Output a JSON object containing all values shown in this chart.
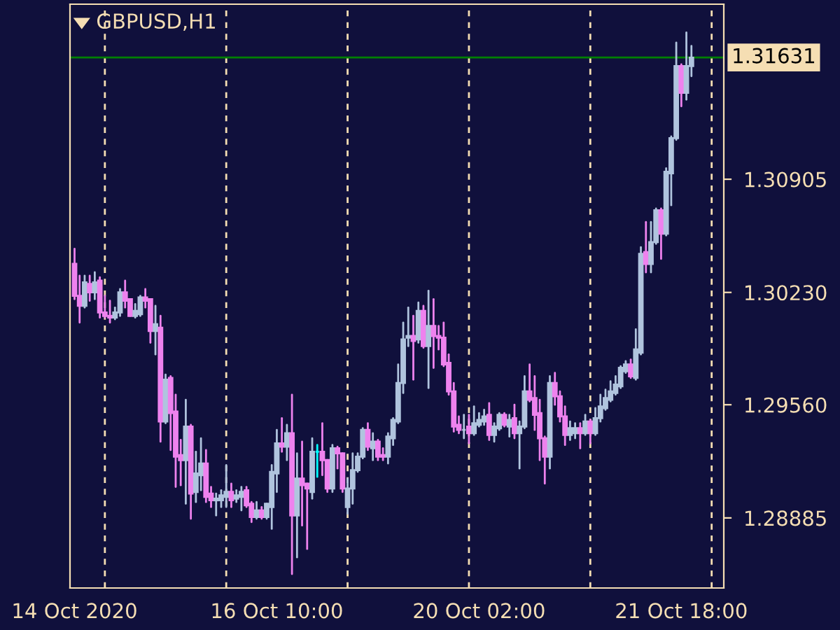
{
  "chart_data": {
    "type": "candlestick",
    "title": "GBPUSD,H1",
    "categories": [
      "14 Oct 2020",
      null,
      null,
      null,
      null,
      null,
      null,
      null,
      null,
      null,
      null,
      null,
      null,
      null,
      null,
      null,
      null,
      null,
      null,
      null,
      null,
      null,
      null,
      null,
      null,
      null,
      null,
      null,
      null,
      null,
      null,
      null,
      null,
      null,
      null,
      null,
      null,
      null,
      null,
      null,
      "16 Oct 10:00",
      null,
      null,
      null,
      null,
      null,
      null,
      null,
      null,
      null,
      null,
      null,
      null,
      null,
      null,
      null,
      null,
      null,
      null,
      null,
      null,
      null,
      null,
      null,
      null,
      null,
      null,
      null,
      null,
      null,
      null,
      null,
      null,
      null,
      null,
      null,
      null,
      null,
      null,
      null,
      "20 Oct 02:00",
      null,
      null,
      null,
      null,
      null,
      null,
      null,
      null,
      null,
      null,
      null,
      null,
      null,
      null,
      null,
      null,
      null,
      null,
      null,
      null,
      null,
      null,
      null,
      null,
      null,
      null,
      null,
      null,
      null,
      null,
      null,
      null,
      null,
      null,
      null,
      null,
      null,
      null,
      null,
      "21 Oct 18:00",
      null,
      null
    ],
    "ohlc": [
      [
        1.304,
        1.3049,
        1.3019,
        1.3021
      ],
      [
        1.3021,
        1.3033,
        1.3005,
        1.3015
      ],
      [
        1.3015,
        1.3033,
        1.3014,
        1.3029
      ],
      [
        1.3028,
        1.3033,
        1.3018,
        1.3023
      ],
      [
        1.3023,
        1.3035,
        1.3019,
        1.3029
      ],
      [
        1.303,
        1.3032,
        1.3008,
        1.3011
      ],
      [
        1.3011,
        1.3021,
        1.3008,
        1.3009
      ],
      [
        1.3009,
        1.3018,
        1.3005,
        1.3008
      ],
      [
        1.3008,
        1.3014,
        1.3007,
        1.3011
      ],
      [
        1.3011,
        1.3025,
        1.3009,
        1.3023
      ],
      [
        1.3023,
        1.303,
        1.3014,
        1.3018
      ],
      [
        1.3019,
        1.3019,
        1.3009,
        1.3009
      ],
      [
        1.3009,
        1.3016,
        1.3008,
        1.3012
      ],
      [
        1.301,
        1.3021,
        1.3009,
        1.302
      ],
      [
        1.302,
        1.3025,
        1.3014,
        1.3018
      ],
      [
        1.3019,
        1.3019,
        1.2993,
        1.3
      ],
      [
        1.3,
        1.3015,
        1.2986,
        1.3004
      ],
      [
        1.3002,
        1.3009,
        1.2934,
        1.2946
      ],
      [
        1.2946,
        1.2974,
        1.2945,
        1.2971
      ],
      [
        1.2972,
        1.2973,
        1.2929,
        1.2951
      ],
      [
        1.2952,
        1.2962,
        1.2907,
        1.2925
      ],
      [
        1.2926,
        1.2935,
        1.2908,
        1.2923
      ],
      [
        1.2923,
        1.2959,
        1.2897,
        1.2943
      ],
      [
        1.2943,
        1.2944,
        1.2888,
        1.2903
      ],
      [
        1.2904,
        1.2928,
        1.2898,
        1.2915
      ],
      [
        1.2914,
        1.2936,
        1.2905,
        1.2921
      ],
      [
        1.2921,
        1.2929,
        1.2898,
        1.2901
      ],
      [
        1.2903,
        1.2907,
        1.2895,
        1.2899
      ],
      [
        1.2899,
        1.2903,
        1.289,
        1.29
      ],
      [
        1.2899,
        1.2905,
        1.2895,
        1.2902
      ],
      [
        1.2901,
        1.292,
        1.2895,
        1.2904
      ],
      [
        1.2904,
        1.2909,
        1.2895,
        1.2899
      ],
      [
        1.29,
        1.2905,
        1.2898,
        1.2902
      ],
      [
        1.2901,
        1.2907,
        1.2893,
        1.2904
      ],
      [
        1.2905,
        1.2907,
        1.2895,
        1.2896
      ],
      [
        1.2897,
        1.2898,
        1.2886,
        1.2889
      ],
      [
        1.2889,
        1.2898,
        1.2888,
        1.2893
      ],
      [
        1.2893,
        1.2895,
        1.2888,
        1.2889
      ],
      [
        1.2889,
        1.2897,
        1.2888,
        1.2897
      ],
      [
        1.2895,
        1.292,
        1.2882,
        1.2916
      ],
      [
        1.2915,
        1.2941,
        1.2904,
        1.2933
      ],
      [
        1.2933,
        1.2948,
        1.2928,
        1.2931
      ],
      [
        1.2931,
        1.2944,
        1.2923,
        1.2939
      ],
      [
        1.2939,
        1.2962,
        1.2855,
        1.289
      ],
      [
        1.289,
        1.2927,
        1.2865,
        1.2912
      ],
      [
        1.2912,
        1.2934,
        1.2884,
        1.2908
      ],
      [
        1.2909,
        1.2909,
        1.287,
        1.2906
      ],
      [
        1.2904,
        1.2936,
        1.29,
        1.2928
      ],
      [
        1.2928,
        1.2932,
        1.2913,
        1.2928
      ],
      [
        1.2928,
        1.2945,
        1.2914,
        1.2923
      ],
      [
        1.2923,
        1.2923,
        1.2904,
        1.2906
      ],
      [
        1.2906,
        1.2932,
        1.2904,
        1.293
      ],
      [
        1.293,
        1.2931,
        1.2918,
        1.2927
      ],
      [
        1.2927,
        1.2927,
        1.2904,
        1.2906
      ],
      [
        1.2895,
        1.2912,
        1.2891,
        1.2906
      ],
      [
        1.2906,
        1.2927,
        1.2897,
        1.2917
      ],
      [
        1.2917,
        1.2927,
        1.2916,
        1.2925
      ],
      [
        1.2925,
        1.2942,
        1.2924,
        1.2941
      ],
      [
        1.2941,
        1.2945,
        1.2929,
        1.2931
      ],
      [
        1.293,
        1.2939,
        1.2923,
        1.2934
      ],
      [
        1.2934,
        1.2935,
        1.2923,
        1.2925
      ],
      [
        1.2926,
        1.293,
        1.2923,
        1.2925
      ],
      [
        1.2925,
        1.2939,
        1.2921,
        1.2937
      ],
      [
        1.2936,
        1.2948,
        1.2932,
        1.2947
      ],
      [
        1.2946,
        1.298,
        1.2945,
        1.2969
      ],
      [
        1.2969,
        1.3005,
        1.2963,
        1.2995
      ],
      [
        1.2996,
        1.3014,
        1.2991,
        1.2997
      ],
      [
        1.2997,
        1.3009,
        1.2971,
        1.2994
      ],
      [
        1.2995,
        1.3017,
        1.2993,
        1.3012
      ],
      [
        1.3012,
        1.3015,
        1.299,
        1.2991
      ],
      [
        1.2991,
        1.3024,
        1.2966,
        1.3003
      ],
      [
        1.3003,
        1.3019,
        1.2978,
        1.2997
      ],
      [
        1.2997,
        1.3003,
        1.2989,
        1.2996
      ],
      [
        1.2996,
        1.3005,
        1.2979,
        1.298
      ],
      [
        1.2981,
        1.2986,
        1.2962,
        1.2964
      ],
      [
        1.2964,
        1.2969,
        1.294,
        1.2943
      ],
      [
        1.2944,
        1.2949,
        1.2939,
        1.2941
      ],
      [
        1.2941,
        1.295,
        1.2936,
        1.2941
      ],
      [
        1.2943,
        1.295,
        1.2933,
        1.2939
      ],
      [
        1.2939,
        1.2955,
        1.2938,
        1.2945
      ],
      [
        1.2944,
        1.2951,
        1.2943,
        1.2947
      ],
      [
        1.2946,
        1.2953,
        1.2944,
        1.2949
      ],
      [
        1.295,
        1.2957,
        1.2935,
        1.2938
      ],
      [
        1.2938,
        1.2945,
        1.2934,
        1.2943
      ],
      [
        1.2942,
        1.2951,
        1.2941,
        1.295
      ],
      [
        1.295,
        1.2951,
        1.2943,
        1.2944
      ],
      [
        1.2943,
        1.295,
        1.2937,
        1.2947
      ],
      [
        1.2948,
        1.2956,
        1.2936,
        1.2939
      ],
      [
        1.2939,
        1.2946,
        1.2918,
        1.2943
      ],
      [
        1.2943,
        1.2973,
        1.2942,
        1.2964
      ],
      [
        1.2964,
        1.298,
        1.2958,
        1.2959
      ],
      [
        1.296,
        1.2973,
        1.2941,
        1.295
      ],
      [
        1.2951,
        1.2959,
        1.2923,
        1.2936
      ],
      [
        1.2936,
        1.2937,
        1.2909,
        1.2925
      ],
      [
        1.2925,
        1.2973,
        1.2918,
        1.2969
      ],
      [
        1.2969,
        1.2975,
        1.2956,
        1.2961
      ],
      [
        1.2961,
        1.2964,
        1.2946,
        1.2949
      ],
      [
        1.2949,
        1.2955,
        1.2932,
        1.2938
      ],
      [
        1.2938,
        1.2946,
        1.2935,
        1.2942
      ],
      [
        1.2939,
        1.2945,
        1.2936,
        1.2942
      ],
      [
        1.2942,
        1.2945,
        1.293,
        1.2939
      ],
      [
        1.2939,
        1.295,
        1.2938,
        1.2946
      ],
      [
        1.2946,
        1.2947,
        1.2933,
        1.2939
      ],
      [
        1.2939,
        1.2954,
        1.2938,
        1.2948
      ],
      [
        1.2948,
        1.2962,
        1.2946,
        1.2955
      ],
      [
        1.2954,
        1.2965,
        1.2953,
        1.296
      ],
      [
        1.2959,
        1.297,
        1.2958,
        1.2964
      ],
      [
        1.2963,
        1.2973,
        1.2962,
        1.2968
      ],
      [
        1.2967,
        1.2979,
        1.2966,
        1.2978
      ],
      [
        1.2976,
        1.2982,
        1.2975,
        1.298
      ],
      [
        1.298,
        1.2983,
        1.2972,
        1.2973
      ],
      [
        1.2972,
        1.3001,
        1.2971,
        1.2989
      ],
      [
        1.2987,
        1.305,
        1.2986,
        1.3046
      ],
      [
        1.3047,
        1.3065,
        1.3035,
        1.304
      ],
      [
        1.304,
        1.3065,
        1.3035,
        1.3053
      ],
      [
        1.3053,
        1.3073,
        1.3052,
        1.3072
      ],
      [
        1.3072,
        1.3073,
        1.3043,
        1.3058
      ],
      [
        1.3058,
        1.3097,
        1.3057,
        1.3095
      ],
      [
        1.3094,
        1.3116,
        1.3075,
        1.3115
      ],
      [
        1.3115,
        1.3172,
        1.3114,
        1.3158
      ],
      [
        1.3158,
        1.3159,
        1.3134,
        1.3142
      ],
      [
        1.3142,
        1.3178,
        1.3138,
        1.3158
      ],
      [
        1.3158,
        1.317,
        1.3152,
        1.3163
      ]
    ],
    "colors": [
      "#ee82ee",
      "#ee82ee",
      "#b0c4de",
      "#ee82ee",
      "#b0c4de",
      "#ee82ee",
      "#ee82ee",
      "#ee82ee",
      "#b0c4de",
      "#b0c4de",
      "#ee82ee",
      "#ee82ee",
      "#b0c4de",
      "#b0c4de",
      "#ee82ee",
      "#ee82ee",
      "#b0c4de",
      "#ee82ee",
      "#b0c4de",
      "#ee82ee",
      "#ee82ee",
      "#ee82ee",
      "#b0c4de",
      "#ee82ee",
      "#b0c4de",
      "#b0c4de",
      "#ee82ee",
      "#ee82ee",
      "#b0c4de",
      "#b0c4de",
      "#b0c4de",
      "#ee82ee",
      "#b0c4de",
      "#b0c4de",
      "#ee82ee",
      "#ee82ee",
      "#b0c4de",
      "#ee82ee",
      "#b0c4de",
      "#b0c4de",
      "#b0c4de",
      "#ee82ee",
      "#b0c4de",
      "#ee82ee",
      "#b0c4de",
      "#ee82ee",
      "#ee82ee",
      "#b0c4de",
      "#00ffff",
      "#ee82ee",
      "#ee82ee",
      "#b0c4de",
      "#ee82ee",
      "#ee82ee",
      "#b0c4de",
      "#b0c4de",
      "#b0c4de",
      "#b0c4de",
      "#ee82ee",
      "#b0c4de",
      "#ee82ee",
      "#ee82ee",
      "#b0c4de",
      "#b0c4de",
      "#b0c4de",
      "#b0c4de",
      "#b0c4de",
      "#ee82ee",
      "#b0c4de",
      "#ee82ee",
      "#b0c4de",
      "#ee82ee",
      "#ee82ee",
      "#ee82ee",
      "#ee82ee",
      "#ee82ee",
      "#ee82ee",
      "#b0c4de",
      "#ee82ee",
      "#b0c4de",
      "#b0c4de",
      "#b0c4de",
      "#ee82ee",
      "#b0c4de",
      "#b0c4de",
      "#ee82ee",
      "#b0c4de",
      "#ee82ee",
      "#b0c4de",
      "#b0c4de",
      "#ee82ee",
      "#ee82ee",
      "#ee82ee",
      "#ee82ee",
      "#b0c4de",
      "#ee82ee",
      "#ee82ee",
      "#ee82ee",
      "#b0c4de",
      "#b0c4de",
      "#ee82ee",
      "#b0c4de",
      "#ee82ee",
      "#b0c4de",
      "#b0c4de",
      "#b0c4de",
      "#b0c4de",
      "#b0c4de",
      "#b0c4de",
      "#b0c4de",
      "#ee82ee",
      "#b0c4de",
      "#b0c4de",
      "#ee82ee",
      "#b0c4de",
      "#b0c4de",
      "#ee82ee",
      "#b0c4de",
      "#b0c4de",
      "#b0c4de",
      "#ee82ee",
      "#b0c4de",
      "#b0c4de"
    ],
    "ylim": [
      1.28467,
      1.31949
    ],
    "yticks": [
      {
        "value": 1.28885,
        "label": "1.28885"
      },
      {
        "value": 1.2956,
        "label": "1.29560"
      },
      {
        "value": 1.3023,
        "label": "1.30230"
      },
      {
        "value": 1.30905,
        "label": "1.30905"
      }
    ],
    "ref_lines": [
      {
        "axis": "y",
        "value": 1.31631,
        "label": "1.31631",
        "color": "#008000",
        "line_style": "solid"
      }
    ],
    "grid": false
  }
}
